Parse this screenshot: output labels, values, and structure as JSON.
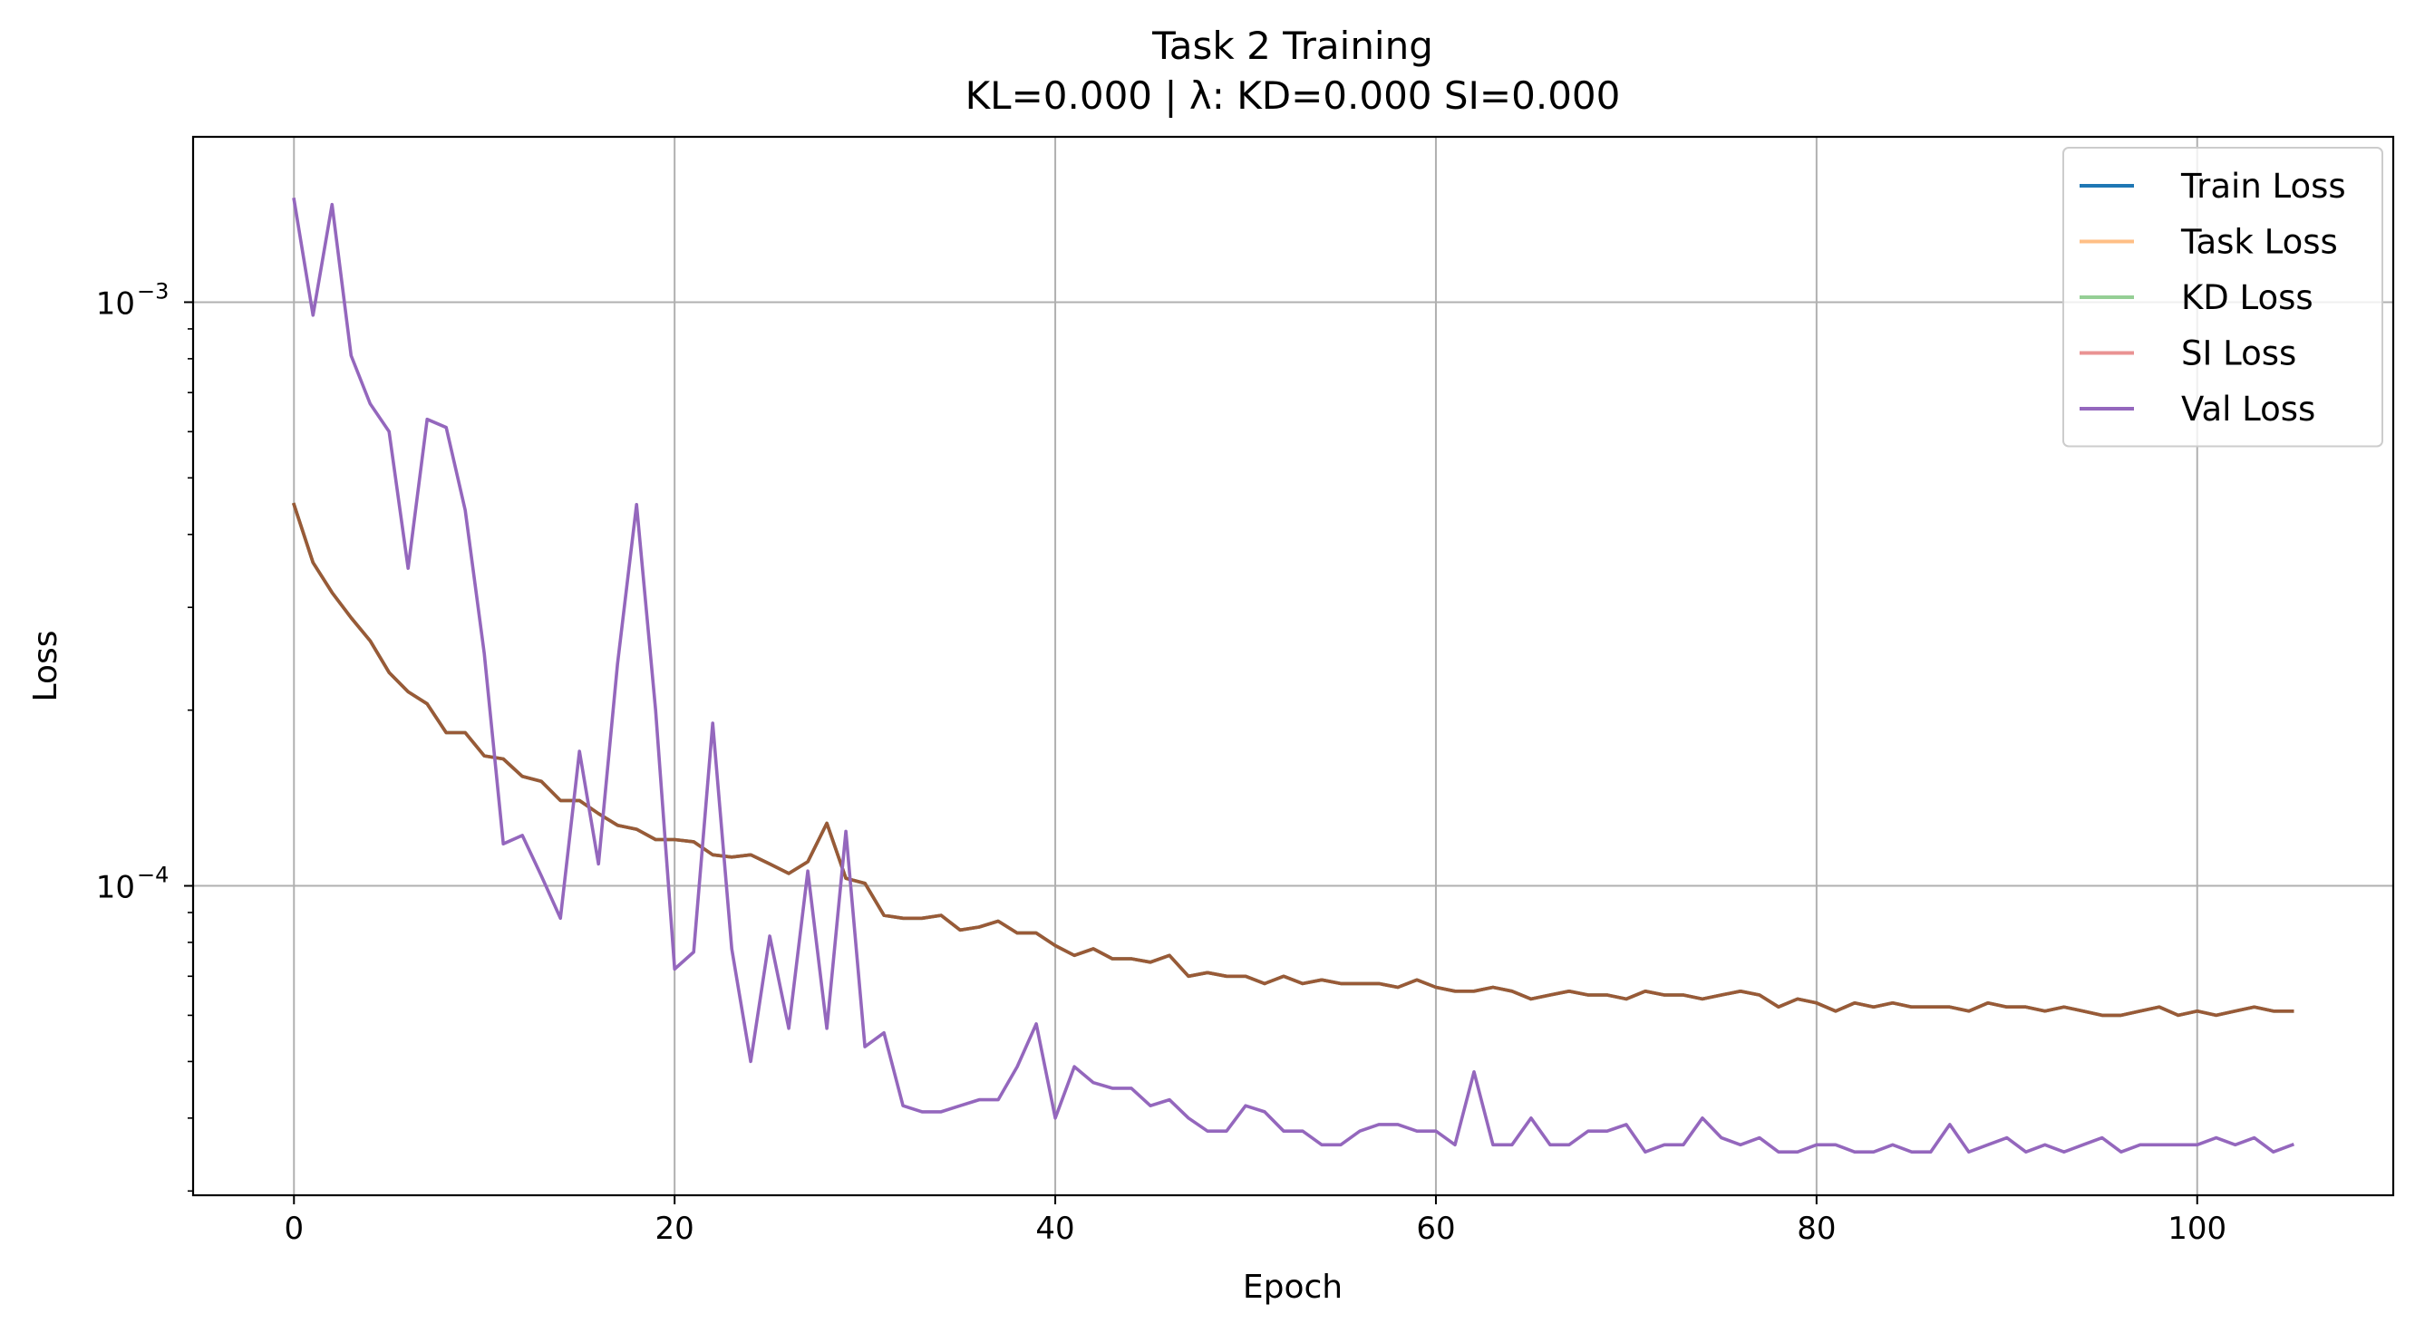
{
  "chart_data": {
    "type": "line",
    "title": "Task 2 Training",
    "subtitle": "KL=0.000 | λ: KD=0.000 SI=0.000",
    "xlabel": "Epoch",
    "ylabel": "Loss",
    "xlim": [
      -5.3,
      110.3
    ],
    "ylim": [
      2.95e-05,
      0.00192
    ],
    "yscale": "log",
    "grid": true,
    "legend_position": "top-right",
    "x_ticks": [
      {
        "value": 0,
        "label": "0"
      },
      {
        "value": 20,
        "label": "20"
      },
      {
        "value": 40,
        "label": "40"
      },
      {
        "value": 60,
        "label": "60"
      },
      {
        "value": 80,
        "label": "80"
      },
      {
        "value": 100,
        "label": "100"
      }
    ],
    "y_ticks": [
      {
        "value": 0.0001,
        "base": "10",
        "exp": "−4"
      },
      {
        "value": 0.001,
        "base": "10",
        "exp": "−3"
      }
    ],
    "x_start": 0,
    "series": [
      {
        "name": "Train Loss",
        "color": "#1f77b4",
        "opacity": 1.0,
        "values": [
          0.00045,
          0.000358,
          0.000318,
          0.000288,
          0.000263,
          0.000232,
          0.000215,
          0.000205,
          0.000183,
          0.000183,
          0.000167,
          0.000165,
          0.000154,
          0.000151,
          0.00014,
          0.00014,
          0.000133,
          0.000127,
          0.000125,
          0.00012,
          0.00012,
          0.000119,
          0.000113,
          0.000112,
          0.000113,
          0.000109,
          0.000105,
          0.00011,
          0.000128,
          0.000103,
          0.000101,
          8.9e-05,
          8.8e-05,
          8.8e-05,
          8.9e-05,
          8.4e-05,
          8.5e-05,
          8.7e-05,
          8.3e-05,
          8.3e-05,
          7.9e-05,
          7.6e-05,
          7.8e-05,
          7.5e-05,
          7.5e-05,
          7.4e-05,
          7.6e-05,
          7e-05,
          7.1e-05,
          7e-05,
          7e-05,
          6.8e-05,
          7e-05,
          6.8e-05,
          6.9e-05,
          6.8e-05,
          6.8e-05,
          6.8e-05,
          6.7e-05,
          6.9e-05,
          6.7e-05,
          6.6e-05,
          6.6e-05,
          6.7e-05,
          6.6e-05,
          6.4e-05,
          6.5e-05,
          6.6e-05,
          6.5e-05,
          6.5e-05,
          6.4e-05,
          6.6e-05,
          6.5e-05,
          6.5e-05,
          6.4e-05,
          6.5e-05,
          6.6e-05,
          6.5e-05,
          6.2e-05,
          6.4e-05,
          6.3e-05,
          6.1e-05,
          6.3e-05,
          6.2e-05,
          6.3e-05,
          6.2e-05,
          6.2e-05,
          6.2e-05,
          6.1e-05,
          6.3e-05,
          6.2e-05,
          6.2e-05,
          6.1e-05,
          6.2e-05,
          6.1e-05,
          6e-05,
          6e-05,
          6.1e-05,
          6.2e-05,
          6e-05,
          6.1e-05,
          6e-05,
          6.1e-05,
          6.2e-05,
          6.1e-05,
          6.1e-05
        ]
      },
      {
        "name": "Task Loss",
        "color": "#ff7f0e",
        "opacity": 0.5,
        "values": [
          0.00045,
          0.000358,
          0.000318,
          0.000288,
          0.000263,
          0.000232,
          0.000215,
          0.000205,
          0.000183,
          0.000183,
          0.000167,
          0.000165,
          0.000154,
          0.000151,
          0.00014,
          0.00014,
          0.000133,
          0.000127,
          0.000125,
          0.00012,
          0.00012,
          0.000119,
          0.000113,
          0.000112,
          0.000113,
          0.000109,
          0.000105,
          0.00011,
          0.000128,
          0.000103,
          0.000101,
          8.9e-05,
          8.8e-05,
          8.8e-05,
          8.9e-05,
          8.4e-05,
          8.5e-05,
          8.7e-05,
          8.3e-05,
          8.3e-05,
          7.9e-05,
          7.6e-05,
          7.8e-05,
          7.5e-05,
          7.5e-05,
          7.4e-05,
          7.6e-05,
          7e-05,
          7.1e-05,
          7e-05,
          7e-05,
          6.8e-05,
          7e-05,
          6.8e-05,
          6.9e-05,
          6.8e-05,
          6.8e-05,
          6.8e-05,
          6.7e-05,
          6.9e-05,
          6.7e-05,
          6.6e-05,
          6.6e-05,
          6.7e-05,
          6.6e-05,
          6.4e-05,
          6.5e-05,
          6.6e-05,
          6.5e-05,
          6.5e-05,
          6.4e-05,
          6.6e-05,
          6.5e-05,
          6.5e-05,
          6.4e-05,
          6.5e-05,
          6.6e-05,
          6.5e-05,
          6.2e-05,
          6.4e-05,
          6.3e-05,
          6.1e-05,
          6.3e-05,
          6.2e-05,
          6.3e-05,
          6.2e-05,
          6.2e-05,
          6.2e-05,
          6.1e-05,
          6.3e-05,
          6.2e-05,
          6.2e-05,
          6.1e-05,
          6.2e-05,
          6.1e-05,
          6e-05,
          6e-05,
          6.1e-05,
          6.2e-05,
          6e-05,
          6.1e-05,
          6e-05,
          6.1e-05,
          6.2e-05,
          6.1e-05,
          6.1e-05
        ]
      },
      {
        "name": "KD Loss",
        "color": "#2ca02c",
        "opacity": 0.5,
        "values": [
          0.00045,
          0.000358,
          0.000318,
          0.000288,
          0.000263,
          0.000232,
          0.000215,
          0.000205,
          0.000183,
          0.000183,
          0.000167,
          0.000165,
          0.000154,
          0.000151,
          0.00014,
          0.00014,
          0.000133,
          0.000127,
          0.000125,
          0.00012,
          0.00012,
          0.000119,
          0.000113,
          0.000112,
          0.000113,
          0.000109,
          0.000105,
          0.00011,
          0.000128,
          0.000103,
          0.000101,
          8.9e-05,
          8.8e-05,
          8.8e-05,
          8.9e-05,
          8.4e-05,
          8.5e-05,
          8.7e-05,
          8.3e-05,
          8.3e-05,
          7.9e-05,
          7.6e-05,
          7.8e-05,
          7.5e-05,
          7.5e-05,
          7.4e-05,
          7.6e-05,
          7e-05,
          7.1e-05,
          7e-05,
          7e-05,
          6.8e-05,
          7e-05,
          6.8e-05,
          6.9e-05,
          6.8e-05,
          6.8e-05,
          6.8e-05,
          6.7e-05,
          6.9e-05,
          6.7e-05,
          6.6e-05,
          6.6e-05,
          6.7e-05,
          6.6e-05,
          6.4e-05,
          6.5e-05,
          6.6e-05,
          6.5e-05,
          6.5e-05,
          6.4e-05,
          6.6e-05,
          6.5e-05,
          6.5e-05,
          6.4e-05,
          6.5e-05,
          6.6e-05,
          6.5e-05,
          6.2e-05,
          6.4e-05,
          6.3e-05,
          6.1e-05,
          6.3e-05,
          6.2e-05,
          6.3e-05,
          6.2e-05,
          6.2e-05,
          6.2e-05,
          6.1e-05,
          6.3e-05,
          6.2e-05,
          6.2e-05,
          6.1e-05,
          6.2e-05,
          6.1e-05,
          6e-05,
          6e-05,
          6.1e-05,
          6.2e-05,
          6e-05,
          6.1e-05,
          6e-05,
          6.1e-05,
          6.2e-05,
          6.1e-05,
          6.1e-05
        ]
      },
      {
        "name": "SI Loss",
        "color": "#d62728",
        "opacity": 0.5,
        "values": [
          0.00045,
          0.000358,
          0.000318,
          0.000288,
          0.000263,
          0.000232,
          0.000215,
          0.000205,
          0.000183,
          0.000183,
          0.000167,
          0.000165,
          0.000154,
          0.000151,
          0.00014,
          0.00014,
          0.000133,
          0.000127,
          0.000125,
          0.00012,
          0.00012,
          0.000119,
          0.000113,
          0.000112,
          0.000113,
          0.000109,
          0.000105,
          0.00011,
          0.000128,
          0.000103,
          0.000101,
          8.9e-05,
          8.8e-05,
          8.8e-05,
          8.9e-05,
          8.4e-05,
          8.5e-05,
          8.7e-05,
          8.3e-05,
          8.3e-05,
          7.9e-05,
          7.6e-05,
          7.8e-05,
          7.5e-05,
          7.5e-05,
          7.4e-05,
          7.6e-05,
          7e-05,
          7.1e-05,
          7e-05,
          7e-05,
          6.8e-05,
          7e-05,
          6.8e-05,
          6.9e-05,
          6.8e-05,
          6.8e-05,
          6.8e-05,
          6.7e-05,
          6.9e-05,
          6.7e-05,
          6.6e-05,
          6.6e-05,
          6.7e-05,
          6.6e-05,
          6.4e-05,
          6.5e-05,
          6.6e-05,
          6.5e-05,
          6.5e-05,
          6.4e-05,
          6.6e-05,
          6.5e-05,
          6.5e-05,
          6.4e-05,
          6.5e-05,
          6.6e-05,
          6.5e-05,
          6.2e-05,
          6.4e-05,
          6.3e-05,
          6.1e-05,
          6.3e-05,
          6.2e-05,
          6.3e-05,
          6.2e-05,
          6.2e-05,
          6.2e-05,
          6.1e-05,
          6.3e-05,
          6.2e-05,
          6.2e-05,
          6.1e-05,
          6.2e-05,
          6.1e-05,
          6e-05,
          6e-05,
          6.1e-05,
          6.2e-05,
          6e-05,
          6.1e-05,
          6e-05,
          6.1e-05,
          6.2e-05,
          6.1e-05,
          6.1e-05
        ]
      },
      {
        "name": "Val Loss",
        "color": "#9467bd",
        "opacity": 1.0,
        "values": [
          0.0015,
          0.00095,
          0.00147,
          0.00081,
          0.00067,
          0.0006,
          0.00035,
          0.00063,
          0.00061,
          0.00044,
          0.00025,
          0.000118,
          0.000122,
          0.000104,
          8.8e-05,
          0.00017,
          0.000109,
          0.00024,
          0.00045,
          0.0002,
          7.2e-05,
          7.7e-05,
          0.00019,
          7.8e-05,
          5e-05,
          8.2e-05,
          5.7e-05,
          0.000106,
          5.7e-05,
          0.000124,
          5.3e-05,
          5.6e-05,
          4.2e-05,
          4.1e-05,
          4.1e-05,
          4.2e-05,
          4.3e-05,
          4.3e-05,
          4.9e-05,
          5.8e-05,
          4e-05,
          4.9e-05,
          4.6e-05,
          4.5e-05,
          4.5e-05,
          4.2e-05,
          4.3e-05,
          4e-05,
          3.8e-05,
          3.8e-05,
          4.2e-05,
          4.1e-05,
          3.8e-05,
          3.8e-05,
          3.6e-05,
          3.6e-05,
          3.8e-05,
          3.9e-05,
          3.9e-05,
          3.8e-05,
          3.8e-05,
          3.6e-05,
          4.8e-05,
          3.6e-05,
          3.6e-05,
          4e-05,
          3.6e-05,
          3.6e-05,
          3.8e-05,
          3.8e-05,
          3.9e-05,
          3.5e-05,
          3.6e-05,
          3.6e-05,
          4e-05,
          3.7e-05,
          3.6e-05,
          3.7e-05,
          3.5e-05,
          3.5e-05,
          3.6e-05,
          3.6e-05,
          3.5e-05,
          3.5e-05,
          3.6e-05,
          3.5e-05,
          3.5e-05,
          3.9e-05,
          3.5e-05,
          3.6e-05,
          3.7e-05,
          3.5e-05,
          3.6e-05,
          3.5e-05,
          3.6e-05,
          3.7e-05,
          3.5e-05,
          3.6e-05,
          3.6e-05,
          3.6e-05,
          3.6e-05,
          3.7e-05,
          3.6e-05,
          3.7e-05,
          3.5e-05,
          3.6e-05
        ]
      }
    ]
  }
}
